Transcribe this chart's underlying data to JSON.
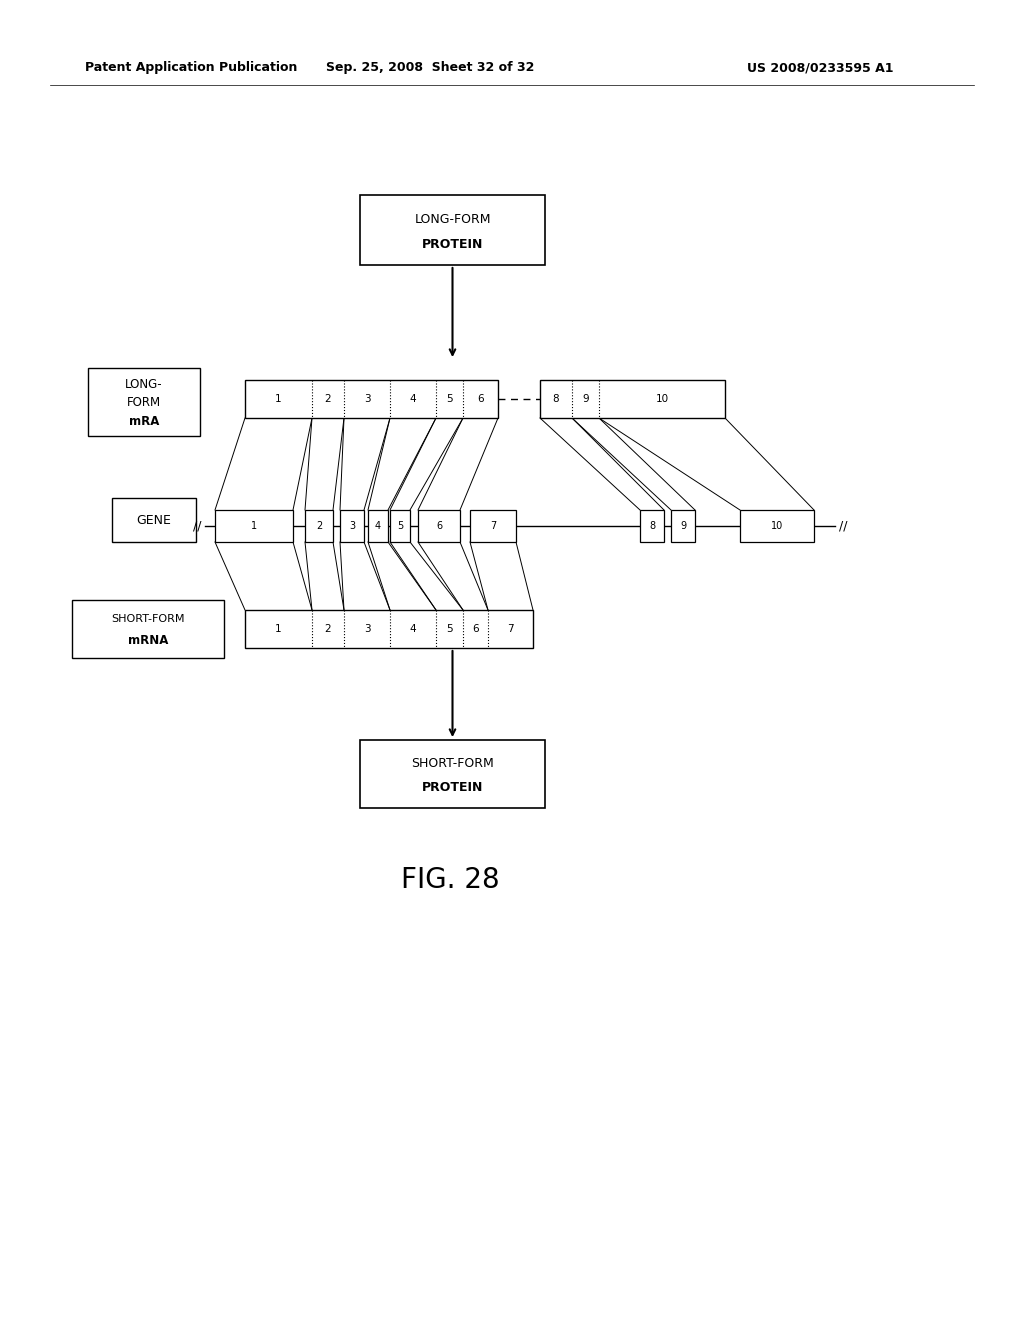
{
  "title": "FIG. 28",
  "header_left": "Patent Application Publication",
  "header_mid": "Sep. 25, 2008  Sheet 32 of 32",
  "header_right": "US 2008/0233595 A1",
  "bg_color": "#ffffff",
  "figsize": [
    10.24,
    13.2
  ],
  "dpi": 100
}
